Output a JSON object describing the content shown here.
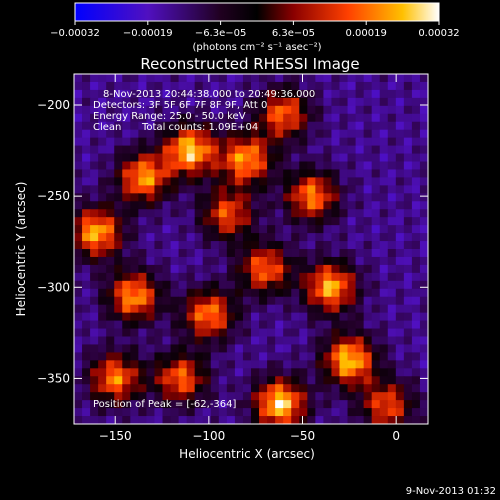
{
  "chart_data": {
    "type": "heatmap",
    "title": "Reconstructed RHESSI Image",
    "xlabel": "Heliocentric X (arcsec)",
    "ylabel": "Heliocentric Y (arcsec)",
    "xlim": [
      -172,
      17
    ],
    "ylim": [
      -375,
      -183
    ],
    "x_ticks": [
      {
        "value": -150,
        "label": "−150"
      },
      {
        "value": -100,
        "label": "−100"
      },
      {
        "value": -50,
        "label": "−50"
      },
      {
        "value": 0,
        "label": "0"
      }
    ],
    "y_ticks": [
      {
        "value": -200,
        "label": "−200"
      },
      {
        "value": -250,
        "label": "−250"
      },
      {
        "value": -300,
        "label": "−300"
      },
      {
        "value": -350,
        "label": "−350"
      }
    ],
    "colorbar": {
      "range": [
        -0.00032,
        0.00032
      ],
      "tick_labels": [
        "−0.00032",
        "−0.00019",
        "−6.3e−05",
        "6.3e−05",
        "0.00019",
        "0.00032"
      ],
      "unit_label": "(photons cm⁻² s⁻¹ asec⁻²)"
    },
    "annotations": {
      "time_range": "8-Nov-2013 20:44:38.000 to 20:49:36.000",
      "detectors": "Detectors: 3F 5F 6F 7F 8F 9F, Att 0",
      "energy": "Energy Range: 25.0 - 50.0 keV",
      "method": "Clean",
      "total_counts": "Total counts: 1.09E+04",
      "peak": "Position of Peak = [-62,-364]"
    },
    "sources": [
      {
        "x": -160,
        "y": -270,
        "intensity": 0.9
      },
      {
        "x": -135,
        "y": -240,
        "intensity": 0.85
      },
      {
        "x": -110,
        "y": -225,
        "intensity": 0.95
      },
      {
        "x": -80,
        "y": -230,
        "intensity": 0.85
      },
      {
        "x": -60,
        "y": -205,
        "intensity": 0.75
      },
      {
        "x": -45,
        "y": -250,
        "intensity": 0.8
      },
      {
        "x": -140,
        "y": -305,
        "intensity": 0.85
      },
      {
        "x": -100,
        "y": -315,
        "intensity": 0.8
      },
      {
        "x": -70,
        "y": -290,
        "intensity": 0.75
      },
      {
        "x": -35,
        "y": -300,
        "intensity": 0.9
      },
      {
        "x": -25,
        "y": -340,
        "intensity": 0.95
      },
      {
        "x": -62,
        "y": -364,
        "intensity": 1.0
      },
      {
        "x": -150,
        "y": -350,
        "intensity": 0.8
      },
      {
        "x": -115,
        "y": -350,
        "intensity": 0.75
      },
      {
        "x": -90,
        "y": -260,
        "intensity": 0.7
      },
      {
        "x": -5,
        "y": -365,
        "intensity": 0.7
      }
    ]
  },
  "footer_date": "9-Nov-2013 01:32"
}
